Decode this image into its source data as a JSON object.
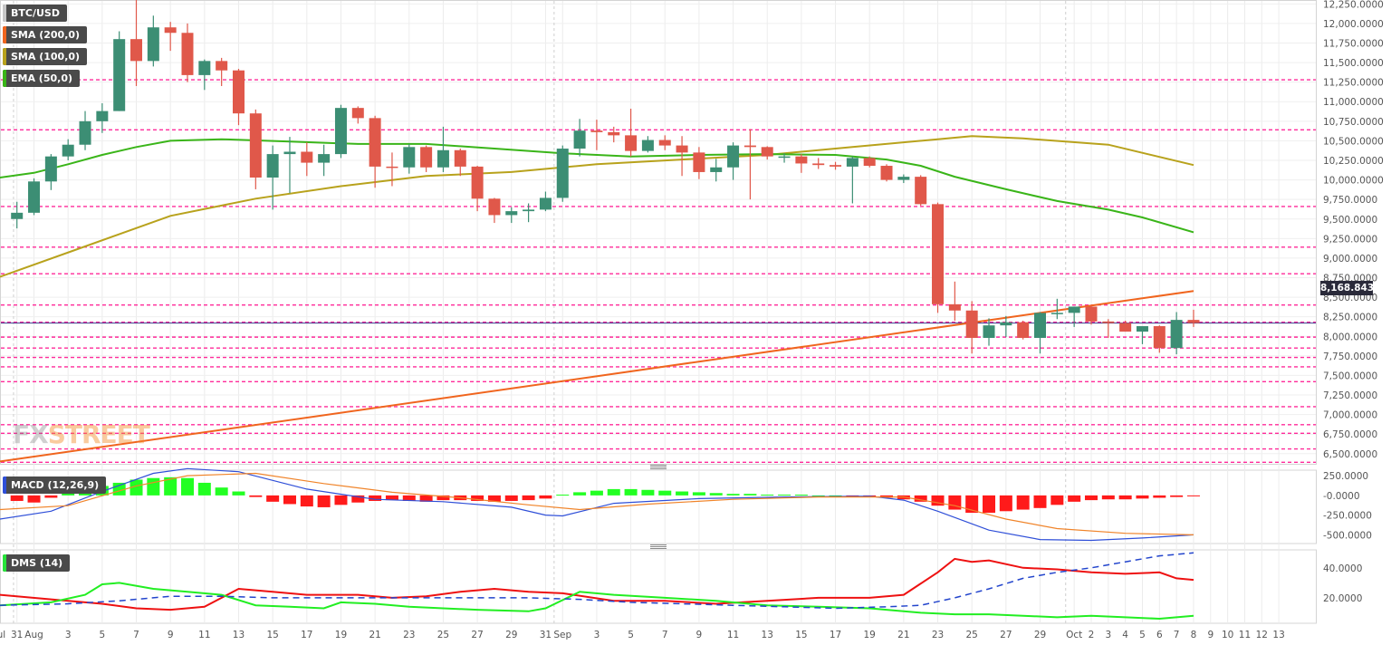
{
  "chart_data": {
    "type": "candlestick",
    "symbol": "BTC/USD",
    "legend": {
      "symbol_label": "BTC/USD",
      "indicators": [
        {
          "label": "SMA (200,0)",
          "color": "#f0651e"
        },
        {
          "label": "SMA (100,0)",
          "color": "#b8a21c"
        },
        {
          "label": "EMA (50,0)",
          "color": "#3ab519"
        }
      ]
    },
    "current_price": "8,168.8434",
    "watermark": {
      "part1": "FX",
      "part2": "STREET"
    },
    "price_axis": {
      "ymin": 6370,
      "ymax": 12300,
      "ticks": [
        "6,500.0000",
        "6,750.0000",
        "7,000.0000",
        "7,250.0000",
        "7,500.0000",
        "7,750.0000",
        "8,000.0000",
        "8,250.0000",
        "8,500.0000",
        "8,750.0000",
        "9,000.0000",
        "9,250.0000",
        "9,500.0000",
        "9,750.0000",
        "10,000.0000",
        "10,250.0000",
        "10,500.0000",
        "10,750.0000",
        "11,000.0000",
        "11,250.0000",
        "11,500.0000",
        "11,750.0000",
        "12,000.0000",
        "12,250.0000"
      ],
      "tick_values": [
        6500,
        6750,
        7000,
        7250,
        7500,
        7750,
        8000,
        8250,
        8500,
        8750,
        9000,
        9250,
        9500,
        9750,
        10000,
        10250,
        10500,
        10750,
        11000,
        11250,
        11500,
        11750,
        12000,
        12250
      ]
    },
    "horizontal_levels": [
      11280,
      10640,
      9660,
      9140,
      8800,
      8400,
      8180,
      7990,
      7850,
      7730,
      7610,
      7420,
      7100,
      6870,
      6760,
      6560,
      6390
    ],
    "x_axis_labels": [
      {
        "i": -1,
        "label": "Jul"
      },
      {
        "i": 0,
        "label": "31"
      },
      {
        "i": 1,
        "label": "Aug"
      },
      {
        "i": 3,
        "label": "3"
      },
      {
        "i": 5,
        "label": "5"
      },
      {
        "i": 7,
        "label": "7"
      },
      {
        "i": 9,
        "label": "9"
      },
      {
        "i": 11,
        "label": "11"
      },
      {
        "i": 13,
        "label": "13"
      },
      {
        "i": 15,
        "label": "15"
      },
      {
        "i": 17,
        "label": "17"
      },
      {
        "i": 19,
        "label": "19"
      },
      {
        "i": 21,
        "label": "21"
      },
      {
        "i": 23,
        "label": "23"
      },
      {
        "i": 25,
        "label": "25"
      },
      {
        "i": 27,
        "label": "27"
      },
      {
        "i": 29,
        "label": "29"
      },
      {
        "i": 31,
        "label": "31"
      },
      {
        "i": 32,
        "label": "Sep"
      },
      {
        "i": 34,
        "label": "3"
      },
      {
        "i": 36,
        "label": "5"
      },
      {
        "i": 38,
        "label": "7"
      },
      {
        "i": 40,
        "label": "9"
      },
      {
        "i": 42,
        "label": "11"
      },
      {
        "i": 44,
        "label": "13"
      },
      {
        "i": 46,
        "label": "15"
      },
      {
        "i": 48,
        "label": "17"
      },
      {
        "i": 50,
        "label": "19"
      },
      {
        "i": 52,
        "label": "21"
      },
      {
        "i": 54,
        "label": "23"
      },
      {
        "i": 56,
        "label": "25"
      },
      {
        "i": 58,
        "label": "27"
      },
      {
        "i": 60,
        "label": "29"
      },
      {
        "i": 62,
        "label": "Oct"
      },
      {
        "i": 63,
        "label": "2"
      },
      {
        "i": 64,
        "label": "3"
      },
      {
        "i": 65,
        "label": "4"
      },
      {
        "i": 66,
        "label": "5"
      },
      {
        "i": 67,
        "label": "6"
      },
      {
        "i": 68,
        "label": "7"
      },
      {
        "i": 69,
        "label": "8"
      },
      {
        "i": 70,
        "label": "9"
      },
      {
        "i": 71,
        "label": "10"
      },
      {
        "i": 72,
        "label": "11"
      },
      {
        "i": 73,
        "label": "12"
      },
      {
        "i": 74,
        "label": "13"
      }
    ],
    "candles": [
      [
        9500,
        9720,
        9380,
        9580
      ],
      [
        9580,
        10020,
        9550,
        9980
      ],
      [
        9980,
        10330,
        9870,
        10300
      ],
      [
        10300,
        10520,
        10250,
        10450
      ],
      [
        10450,
        10880,
        10380,
        10750
      ],
      [
        10750,
        10980,
        10600,
        10880
      ],
      [
        10880,
        11900,
        10880,
        11800
      ],
      [
        11800,
        12320,
        11200,
        11520
      ],
      [
        11520,
        12100,
        11450,
        11950
      ],
      [
        11950,
        12020,
        11650,
        11880
      ],
      [
        11880,
        12000,
        11250,
        11340
      ],
      [
        11340,
        11540,
        11150,
        11520
      ],
      [
        11520,
        11560,
        11200,
        11400
      ],
      [
        11400,
        11420,
        10700,
        10850
      ],
      [
        10850,
        10900,
        9880,
        10030
      ],
      [
        10030,
        10440,
        9620,
        10330
      ],
      [
        10330,
        10550,
        9830,
        10360
      ],
      [
        10360,
        10480,
        10050,
        10220
      ],
      [
        10220,
        10450,
        10050,
        10330
      ],
      [
        10330,
        10960,
        10280,
        10920
      ],
      [
        10920,
        10940,
        10720,
        10790
      ],
      [
        10790,
        10820,
        9900,
        10170
      ],
      [
        10170,
        10350,
        9920,
        10160
      ],
      [
        10160,
        10460,
        10080,
        10420
      ],
      [
        10420,
        10440,
        10100,
        10160
      ],
      [
        10160,
        10680,
        10100,
        10380
      ],
      [
        10380,
        10400,
        10050,
        10170
      ],
      [
        10170,
        10180,
        9600,
        9760
      ],
      [
        9760,
        9770,
        9450,
        9550
      ],
      [
        9550,
        9650,
        9450,
        9600
      ],
      [
        9600,
        9700,
        9460,
        9620
      ],
      [
        9620,
        9850,
        9600,
        9770
      ],
      [
        9770,
        10440,
        9720,
        10400
      ],
      [
        10400,
        10780,
        10300,
        10630
      ],
      [
        10630,
        10770,
        10380,
        10610
      ],
      [
        10610,
        10680,
        10480,
        10570
      ],
      [
        10570,
        10910,
        10300,
        10370
      ],
      [
        10370,
        10560,
        10350,
        10510
      ],
      [
        10510,
        10570,
        10380,
        10440
      ],
      [
        10440,
        10560,
        10050,
        10350
      ],
      [
        10350,
        10420,
        10010,
        10100
      ],
      [
        10100,
        10270,
        9980,
        10160
      ],
      [
        10160,
        10480,
        10000,
        10440
      ],
      [
        10440,
        10650,
        9750,
        10420
      ],
      [
        10420,
        10430,
        10260,
        10300
      ],
      [
        10300,
        10340,
        10220,
        10300
      ],
      [
        10300,
        10330,
        10090,
        10210
      ],
      [
        10210,
        10280,
        10140,
        10190
      ],
      [
        10190,
        10230,
        10130,
        10170
      ],
      [
        10170,
        10300,
        9700,
        10280
      ],
      [
        10280,
        10300,
        10160,
        10180
      ],
      [
        10180,
        10200,
        9980,
        10000
      ],
      [
        10000,
        10070,
        9960,
        10040
      ],
      [
        10040,
        10060,
        9670,
        9690
      ],
      [
        9690,
        9710,
        8300,
        8410
      ],
      [
        8410,
        8700,
        8200,
        8330
      ],
      [
        8330,
        8450,
        7780,
        7980
      ],
      [
        7980,
        8230,
        7880,
        8140
      ],
      [
        8140,
        8260,
        7990,
        8180
      ],
      [
        8180,
        8200,
        7960,
        7980
      ],
      [
        7980,
        8310,
        7780,
        8300
      ],
      [
        8300,
        8480,
        8220,
        8300
      ],
      [
        8300,
        8380,
        8120,
        8380
      ],
      [
        8380,
        8390,
        8150,
        8190
      ],
      [
        8190,
        8220,
        7980,
        8170
      ],
      [
        8170,
        8200,
        8060,
        8060
      ],
      [
        8060,
        8090,
        7900,
        8130
      ],
      [
        8130,
        8140,
        7790,
        7850
      ],
      [
        7850,
        8310,
        7770,
        8210
      ],
      [
        8210,
        8340,
        8120,
        8170
      ]
    ],
    "sma200": {
      "x0": -1,
      "y0": 6400,
      "x1": 69,
      "y1": 8580
    },
    "sma100": [
      [
        -1,
        8760
      ],
      [
        4,
        9150
      ],
      [
        9,
        9540
      ],
      [
        14,
        9760
      ],
      [
        19,
        9920
      ],
      [
        24,
        10050
      ],
      [
        29,
        10100
      ],
      [
        34,
        10200
      ],
      [
        39,
        10260
      ],
      [
        44,
        10320
      ],
      [
        49,
        10420
      ],
      [
        54,
        10520
      ],
      [
        56,
        10560
      ],
      [
        59,
        10530
      ],
      [
        64,
        10450
      ],
      [
        69,
        10190
      ]
    ],
    "ema50": [
      [
        -1,
        10030
      ],
      [
        1,
        10090
      ],
      [
        3,
        10200
      ],
      [
        5,
        10320
      ],
      [
        7,
        10420
      ],
      [
        9,
        10500
      ],
      [
        12,
        10520
      ],
      [
        16,
        10490
      ],
      [
        20,
        10460
      ],
      [
        24,
        10460
      ],
      [
        28,
        10400
      ],
      [
        32,
        10340
      ],
      [
        36,
        10300
      ],
      [
        40,
        10320
      ],
      [
        44,
        10330
      ],
      [
        48,
        10320
      ],
      [
        51,
        10260
      ],
      [
        53,
        10180
      ],
      [
        55,
        10040
      ],
      [
        58,
        9880
      ],
      [
        61,
        9730
      ],
      [
        64,
        9620
      ],
      [
        66,
        9520
      ],
      [
        69,
        9330
      ]
    ],
    "macd": {
      "title": "MACD (12,26,9)",
      "ymin": -610,
      "ymax": 320,
      "ticks": [
        "250.0000",
        "-0.0000",
        "-250.0000",
        "-500.0000"
      ],
      "tick_values": [
        250,
        0,
        -250,
        -500
      ],
      "histogram": [
        -70,
        -90,
        -30,
        40,
        60,
        120,
        160,
        200,
        220,
        230,
        220,
        160,
        100,
        50,
        -20,
        -80,
        -110,
        -140,
        -150,
        -120,
        -90,
        -70,
        -60,
        -70,
        -80,
        -60,
        -60,
        -70,
        -80,
        -70,
        -60,
        -40,
        10,
        40,
        60,
        80,
        80,
        70,
        60,
        50,
        40,
        30,
        20,
        20,
        10,
        10,
        10,
        0,
        0,
        -10,
        -20,
        -30,
        -50,
        -80,
        -130,
        -180,
        -220,
        -220,
        -200,
        -180,
        -160,
        -120,
        -80,
        -60,
        -50,
        -50,
        -40,
        -30,
        -20,
        -10
      ],
      "macd_line": [
        [
          -1,
          -300
        ],
        [
          2,
          -200
        ],
        [
          5,
          50
        ],
        [
          8,
          280
        ],
        [
          10,
          340
        ],
        [
          13,
          300
        ],
        [
          17,
          80
        ],
        [
          21,
          -50
        ],
        [
          25,
          -80
        ],
        [
          29,
          -150
        ],
        [
          31,
          -250
        ],
        [
          32,
          -260
        ],
        [
          35,
          -100
        ],
        [
          40,
          -40
        ],
        [
          45,
          -20
        ],
        [
          50,
          -10
        ],
        [
          52,
          -60
        ],
        [
          54,
          -200
        ],
        [
          57,
          -440
        ],
        [
          60,
          -560
        ],
        [
          63,
          -570
        ],
        [
          66,
          -540
        ],
        [
          69,
          -500
        ]
      ],
      "signal_line": [
        [
          -1,
          -180
        ],
        [
          3,
          -130
        ],
        [
          7,
          120
        ],
        [
          10,
          250
        ],
        [
          14,
          280
        ],
        [
          18,
          150
        ],
        [
          22,
          40
        ],
        [
          26,
          -30
        ],
        [
          30,
          -120
        ],
        [
          33,
          -180
        ],
        [
          37,
          -110
        ],
        [
          42,
          -50
        ],
        [
          47,
          -20
        ],
        [
          52,
          -20
        ],
        [
          55,
          -130
        ],
        [
          58,
          -300
        ],
        [
          61,
          -420
        ],
        [
          65,
          -480
        ],
        [
          69,
          -500
        ]
      ]
    },
    "dms": {
      "title": "DMS (14)",
      "ymin": 3,
      "ymax": 52,
      "ticks": [
        "40.0000",
        "20.0000"
      ],
      "tick_values": [
        40,
        20
      ],
      "adx": [
        [
          -1,
          15
        ],
        [
          3,
          16
        ],
        [
          6,
          18
        ],
        [
          9,
          21
        ],
        [
          12,
          21
        ],
        [
          15,
          20
        ],
        [
          18,
          20
        ],
        [
          21,
          20
        ],
        [
          24,
          20
        ],
        [
          27,
          20
        ],
        [
          30,
          20
        ],
        [
          33,
          19
        ],
        [
          36,
          17
        ],
        [
          39,
          16
        ],
        [
          42,
          15
        ],
        [
          45,
          14
        ],
        [
          48,
          13
        ],
        [
          51,
          14
        ],
        [
          53,
          15
        ],
        [
          55,
          20
        ],
        [
          57,
          26
        ],
        [
          59,
          33
        ],
        [
          61,
          37
        ],
        [
          63,
          40
        ],
        [
          65,
          44
        ],
        [
          67,
          48
        ],
        [
          69,
          50
        ]
      ],
      "plus_di": [
        [
          -1,
          22
        ],
        [
          2,
          19
        ],
        [
          5,
          16
        ],
        [
          7,
          13
        ],
        [
          9,
          12
        ],
        [
          11,
          14
        ],
        [
          13,
          26
        ],
        [
          15,
          24
        ],
        [
          17,
          22
        ],
        [
          19,
          22
        ],
        [
          20,
          22
        ],
        [
          22,
          20
        ],
        [
          24,
          21
        ],
        [
          26,
          24
        ],
        [
          28,
          26
        ],
        [
          30,
          24
        ],
        [
          32,
          23
        ],
        [
          35,
          18
        ],
        [
          38,
          18
        ],
        [
          41,
          16
        ],
        [
          44,
          18
        ],
        [
          47,
          20
        ],
        [
          50,
          20
        ],
        [
          52,
          22
        ],
        [
          54,
          37
        ],
        [
          55,
          46
        ],
        [
          56,
          44
        ],
        [
          57,
          45
        ],
        [
          59,
          40
        ],
        [
          61,
          39
        ],
        [
          63,
          37
        ],
        [
          65,
          36
        ],
        [
          67,
          37
        ],
        [
          68,
          33
        ],
        [
          69,
          32
        ]
      ],
      "minus_di": [
        [
          -1,
          15
        ],
        [
          2,
          17
        ],
        [
          4,
          22
        ],
        [
          5,
          29
        ],
        [
          6,
          30
        ],
        [
          8,
          26
        ],
        [
          10,
          24
        ],
        [
          12,
          22
        ],
        [
          14,
          15
        ],
        [
          16,
          14
        ],
        [
          18,
          13
        ],
        [
          19,
          17
        ],
        [
          21,
          16
        ],
        [
          23,
          14
        ],
        [
          25,
          13
        ],
        [
          27,
          12
        ],
        [
          30,
          11
        ],
        [
          31,
          13
        ],
        [
          33,
          24
        ],
        [
          35,
          22
        ],
        [
          38,
          20
        ],
        [
          41,
          18
        ],
        [
          44,
          15
        ],
        [
          47,
          14
        ],
        [
          50,
          13
        ],
        [
          53,
          10
        ],
        [
          55,
          9
        ],
        [
          57,
          9
        ],
        [
          59,
          8
        ],
        [
          61,
          7
        ],
        [
          63,
          8
        ],
        [
          65,
          7
        ],
        [
          67,
          6
        ],
        [
          69,
          8
        ]
      ]
    }
  }
}
